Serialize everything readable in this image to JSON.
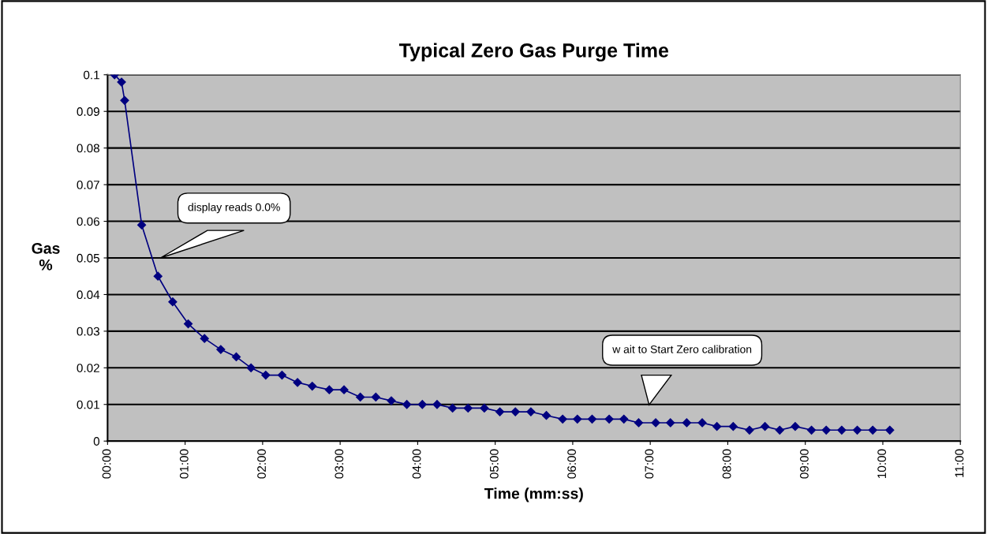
{
  "chart_data": {
    "type": "line",
    "title": "Typical Zero Gas Purge Time",
    "xlabel": "Time (mm:ss)",
    "ylabel": "Gas\n%",
    "x": [
      0.09,
      0.18,
      0.22,
      0.44,
      0.65,
      0.84,
      1.04,
      1.25,
      1.46,
      1.66,
      1.85,
      2.04,
      2.25,
      2.45,
      2.64,
      2.86,
      3.05,
      3.26,
      3.46,
      3.66,
      3.86,
      4.06,
      4.25,
      4.45,
      4.65,
      4.86,
      5.06,
      5.26,
      5.46,
      5.66,
      5.87,
      6.06,
      6.25,
      6.47,
      6.66,
      6.85,
      7.07,
      7.26,
      7.47,
      7.67,
      7.86,
      8.07,
      8.28,
      8.48,
      8.67,
      8.87,
      9.08,
      9.27,
      9.47,
      9.67,
      9.87,
      10.09
    ],
    "series": [
      {
        "color": "#000080",
        "values": [
          0.1,
          0.098,
          0.093,
          0.059,
          0.045,
          0.038,
          0.032,
          0.028,
          0.025,
          0.023,
          0.02,
          0.018,
          0.018,
          0.016,
          0.015,
          0.014,
          0.014,
          0.012,
          0.012,
          0.011,
          0.01,
          0.01,
          0.01,
          0.009,
          0.009,
          0.009,
          0.008,
          0.008,
          0.008,
          0.007,
          0.006,
          0.006,
          0.006,
          0.006,
          0.006,
          0.005,
          0.005,
          0.005,
          0.005,
          0.005,
          0.004,
          0.004,
          0.003,
          0.004,
          0.003,
          0.004,
          0.003,
          0.003,
          0.003,
          0.003,
          0.003,
          0.003
        ]
      }
    ],
    "xlim": [
      0,
      11
    ],
    "xticks": [
      {
        "value": 0,
        "label": "00:00"
      },
      {
        "value": 1,
        "label": "01:00"
      },
      {
        "value": 2,
        "label": "02:00"
      },
      {
        "value": 3,
        "label": "03:00"
      },
      {
        "value": 4,
        "label": "04:00"
      },
      {
        "value": 5,
        "label": "05:00"
      },
      {
        "value": 6,
        "label": "06:00"
      },
      {
        "value": 7,
        "label": "07:00"
      },
      {
        "value": 8,
        "label": "08:00"
      },
      {
        "value": 9,
        "label": "09:00"
      },
      {
        "value": 10,
        "label": "10:00"
      },
      {
        "value": 11,
        "label": "11:00"
      }
    ],
    "ylim": [
      0,
      0.1
    ],
    "yticks": [
      0,
      0.01,
      0.02,
      0.03,
      0.04,
      0.05,
      0.06,
      0.07,
      0.08,
      0.09,
      0.1
    ],
    "annotations": [
      "display reads 0.0%",
      "w ait to Start Zero calibration"
    ],
    "grid": "y",
    "legend": false,
    "marker": "diamond",
    "line_style": "solid"
  }
}
